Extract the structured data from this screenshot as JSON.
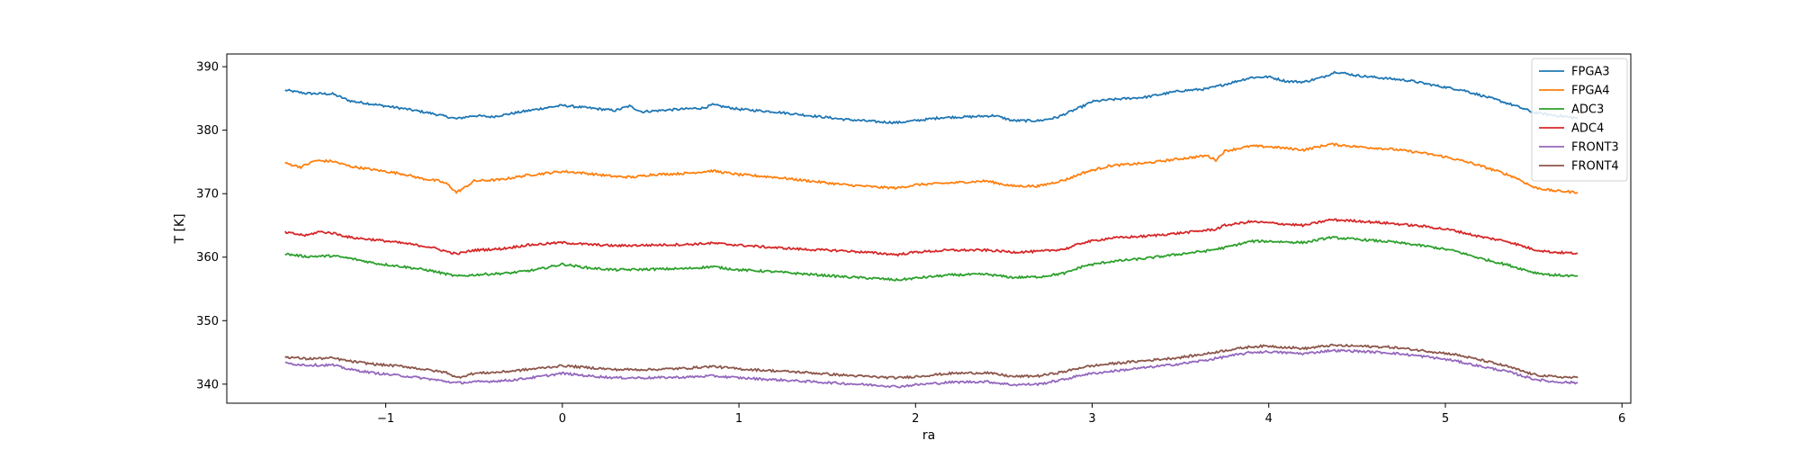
{
  "chart_data": {
    "type": "line",
    "title": "",
    "xlabel": "ra",
    "ylabel": "T [K]",
    "xlim": [
      -1.9,
      6.05
    ],
    "ylim": [
      337,
      392
    ],
    "xticks": [
      -1,
      0,
      1,
      2,
      3,
      4,
      5,
      6
    ],
    "yticks": [
      340,
      350,
      360,
      370,
      380,
      390
    ],
    "grid": false,
    "legend_position": "top-right",
    "series": [
      {
        "name": "FPGA3",
        "color": "#1f77b4",
        "points": [
          [
            -1.57,
            386.3
          ],
          [
            -1.45,
            385.8
          ],
          [
            -1.3,
            385.7
          ],
          [
            -1.2,
            384.6
          ],
          [
            -1.05,
            384.0
          ],
          [
            -0.9,
            383.4
          ],
          [
            -0.75,
            382.7
          ],
          [
            -0.6,
            381.8
          ],
          [
            -0.5,
            382.3
          ],
          [
            -0.4,
            382.1
          ],
          [
            -0.25,
            382.8
          ],
          [
            -0.1,
            383.5
          ],
          [
            0.0,
            383.9
          ],
          [
            0.15,
            383.5
          ],
          [
            0.3,
            383.1
          ],
          [
            0.38,
            383.8
          ],
          [
            0.45,
            382.9
          ],
          [
            0.6,
            383.2
          ],
          [
            0.8,
            383.5
          ],
          [
            0.85,
            384.0
          ],
          [
            1.0,
            383.3
          ],
          [
            1.2,
            382.9
          ],
          [
            1.4,
            382.3
          ],
          [
            1.6,
            381.7
          ],
          [
            1.8,
            381.3
          ],
          [
            1.9,
            381.2
          ],
          [
            2.0,
            381.5
          ],
          [
            2.15,
            382.0
          ],
          [
            2.3,
            382.1
          ],
          [
            2.45,
            382.3
          ],
          [
            2.55,
            381.5
          ],
          [
            2.7,
            381.5
          ],
          [
            2.8,
            382.0
          ],
          [
            2.95,
            383.8
          ],
          [
            3.0,
            384.5
          ],
          [
            3.1,
            384.8
          ],
          [
            3.3,
            385.2
          ],
          [
            3.5,
            386.2
          ],
          [
            3.65,
            386.5
          ],
          [
            3.75,
            387.2
          ],
          [
            3.9,
            388.3
          ],
          [
            4.0,
            388.4
          ],
          [
            4.1,
            387.7
          ],
          [
            4.2,
            387.6
          ],
          [
            4.3,
            388.3
          ],
          [
            4.38,
            389.2
          ],
          [
            4.5,
            388.6
          ],
          [
            4.65,
            388.2
          ],
          [
            4.8,
            387.8
          ],
          [
            4.95,
            387.0
          ],
          [
            5.1,
            386.3
          ],
          [
            5.2,
            385.5
          ],
          [
            5.3,
            384.7
          ],
          [
            5.4,
            383.8
          ],
          [
            5.5,
            382.8
          ],
          [
            5.6,
            382.4
          ],
          [
            5.75,
            381.9
          ]
        ]
      },
      {
        "name": "FPGA4",
        "color": "#ff7f0e",
        "points": [
          [
            -1.57,
            374.8
          ],
          [
            -1.48,
            374.2
          ],
          [
            -1.4,
            375.2
          ],
          [
            -1.3,
            375.1
          ],
          [
            -1.2,
            374.3
          ],
          [
            -1.05,
            373.7
          ],
          [
            -0.9,
            373.1
          ],
          [
            -0.8,
            372.4
          ],
          [
            -0.7,
            372.0
          ],
          [
            -0.65,
            371.5
          ],
          [
            -0.6,
            370.2
          ],
          [
            -0.55,
            371.0
          ],
          [
            -0.5,
            372.0
          ],
          [
            -0.35,
            372.2
          ],
          [
            -0.2,
            372.9
          ],
          [
            0.0,
            373.5
          ],
          [
            0.1,
            373.3
          ],
          [
            0.3,
            372.7
          ],
          [
            0.4,
            372.6
          ],
          [
            0.5,
            373.0
          ],
          [
            0.7,
            373.2
          ],
          [
            0.85,
            373.6
          ],
          [
            1.0,
            373.0
          ],
          [
            1.2,
            372.6
          ],
          [
            1.4,
            372.0
          ],
          [
            1.6,
            371.4
          ],
          [
            1.8,
            371.0
          ],
          [
            1.9,
            370.9
          ],
          [
            2.0,
            371.4
          ],
          [
            2.2,
            371.7
          ],
          [
            2.4,
            372.0
          ],
          [
            2.55,
            371.2
          ],
          [
            2.7,
            371.2
          ],
          [
            2.85,
            372.2
          ],
          [
            2.95,
            373.3
          ],
          [
            3.1,
            374.4
          ],
          [
            3.3,
            374.8
          ],
          [
            3.5,
            375.5
          ],
          [
            3.65,
            376.0
          ],
          [
            3.7,
            375.3
          ],
          [
            3.75,
            376.7
          ],
          [
            3.9,
            377.5
          ],
          [
            4.0,
            377.4
          ],
          [
            4.2,
            376.9
          ],
          [
            4.35,
            377.8
          ],
          [
            4.5,
            377.4
          ],
          [
            4.7,
            377.0
          ],
          [
            4.85,
            376.5
          ],
          [
            5.0,
            375.8
          ],
          [
            5.15,
            374.8
          ],
          [
            5.3,
            373.5
          ],
          [
            5.4,
            372.5
          ],
          [
            5.5,
            371.0
          ],
          [
            5.6,
            370.5
          ],
          [
            5.75,
            370.2
          ]
        ]
      },
      {
        "name": "ADC3",
        "color": "#2ca02c",
        "points": [
          [
            -1.57,
            360.5
          ],
          [
            -1.45,
            360.1
          ],
          [
            -1.3,
            360.2
          ],
          [
            -1.2,
            359.8
          ],
          [
            -1.05,
            359.0
          ],
          [
            -0.9,
            358.5
          ],
          [
            -0.75,
            357.9
          ],
          [
            -0.6,
            357.0
          ],
          [
            -0.45,
            357.3
          ],
          [
            -0.3,
            357.5
          ],
          [
            -0.15,
            358.0
          ],
          [
            0.0,
            358.9
          ],
          [
            0.15,
            358.3
          ],
          [
            0.3,
            358.0
          ],
          [
            0.5,
            358.1
          ],
          [
            0.7,
            358.2
          ],
          [
            0.85,
            358.5
          ],
          [
            1.0,
            358.0
          ],
          [
            1.2,
            357.7
          ],
          [
            1.4,
            357.3
          ],
          [
            1.6,
            356.9
          ],
          [
            1.8,
            356.6
          ],
          [
            1.9,
            356.4
          ],
          [
            2.0,
            356.7
          ],
          [
            2.2,
            357.2
          ],
          [
            2.4,
            357.3
          ],
          [
            2.55,
            356.8
          ],
          [
            2.7,
            356.9
          ],
          [
            2.85,
            357.5
          ],
          [
            2.95,
            358.6
          ],
          [
            3.1,
            359.3
          ],
          [
            3.3,
            359.8
          ],
          [
            3.5,
            360.5
          ],
          [
            3.65,
            361.0
          ],
          [
            3.75,
            361.5
          ],
          [
            3.9,
            362.5
          ],
          [
            4.0,
            362.5
          ],
          [
            4.2,
            362.3
          ],
          [
            4.35,
            363.1
          ],
          [
            4.5,
            362.8
          ],
          [
            4.7,
            362.4
          ],
          [
            4.9,
            361.7
          ],
          [
            5.05,
            361.0
          ],
          [
            5.2,
            359.8
          ],
          [
            5.35,
            358.8
          ],
          [
            5.5,
            357.6
          ],
          [
            5.6,
            357.2
          ],
          [
            5.75,
            357.0
          ]
        ]
      },
      {
        "name": "ADC4",
        "color": "#d62728",
        "points": [
          [
            -1.57,
            363.9
          ],
          [
            -1.45,
            363.4
          ],
          [
            -1.38,
            364.0
          ],
          [
            -1.3,
            363.8
          ],
          [
            -1.2,
            363.1
          ],
          [
            -1.05,
            362.7
          ],
          [
            -0.9,
            362.2
          ],
          [
            -0.75,
            361.6
          ],
          [
            -0.6,
            360.5
          ],
          [
            -0.5,
            361.1
          ],
          [
            -0.35,
            361.3
          ],
          [
            -0.2,
            361.9
          ],
          [
            0.0,
            362.3
          ],
          [
            0.15,
            362.0
          ],
          [
            0.3,
            361.8
          ],
          [
            0.5,
            361.9
          ],
          [
            0.7,
            362.0
          ],
          [
            0.85,
            362.2
          ],
          [
            1.0,
            361.9
          ],
          [
            1.2,
            361.5
          ],
          [
            1.4,
            361.2
          ],
          [
            1.6,
            361.0
          ],
          [
            1.8,
            360.6
          ],
          [
            1.9,
            360.4
          ],
          [
            2.0,
            360.8
          ],
          [
            2.2,
            361.1
          ],
          [
            2.4,
            361.1
          ],
          [
            2.55,
            360.8
          ],
          [
            2.7,
            360.9
          ],
          [
            2.85,
            361.3
          ],
          [
            2.95,
            362.3
          ],
          [
            3.1,
            363.0
          ],
          [
            3.3,
            363.3
          ],
          [
            3.5,
            363.8
          ],
          [
            3.7,
            364.4
          ],
          [
            3.75,
            365.0
          ],
          [
            3.9,
            365.6
          ],
          [
            4.0,
            365.4
          ],
          [
            4.2,
            365.0
          ],
          [
            4.35,
            365.9
          ],
          [
            4.5,
            365.7
          ],
          [
            4.7,
            365.3
          ],
          [
            4.9,
            364.8
          ],
          [
            5.05,
            364.2
          ],
          [
            5.2,
            363.2
          ],
          [
            5.35,
            362.5
          ],
          [
            5.5,
            361.2
          ],
          [
            5.6,
            360.8
          ],
          [
            5.75,
            360.6
          ]
        ]
      },
      {
        "name": "FRONT3",
        "color": "#9467bd",
        "points": [
          [
            -1.57,
            343.3
          ],
          [
            -1.45,
            343.0
          ],
          [
            -1.3,
            343.0
          ],
          [
            -1.2,
            342.3
          ],
          [
            -1.05,
            341.7
          ],
          [
            -0.9,
            341.3
          ],
          [
            -0.75,
            340.8
          ],
          [
            -0.6,
            340.2
          ],
          [
            -0.45,
            340.4
          ],
          [
            -0.3,
            340.6
          ],
          [
            -0.15,
            341.1
          ],
          [
            0.0,
            341.7
          ],
          [
            0.15,
            341.3
          ],
          [
            0.3,
            341.0
          ],
          [
            0.5,
            341.0
          ],
          [
            0.7,
            341.1
          ],
          [
            0.85,
            341.3
          ],
          [
            1.0,
            341.0
          ],
          [
            1.2,
            340.7
          ],
          [
            1.4,
            340.4
          ],
          [
            1.6,
            340.1
          ],
          [
            1.8,
            339.8
          ],
          [
            1.9,
            339.6
          ],
          [
            2.0,
            339.9
          ],
          [
            2.2,
            340.3
          ],
          [
            2.4,
            340.4
          ],
          [
            2.55,
            339.9
          ],
          [
            2.7,
            340.0
          ],
          [
            2.85,
            340.8
          ],
          [
            2.95,
            341.5
          ],
          [
            3.1,
            342.0
          ],
          [
            3.3,
            342.6
          ],
          [
            3.5,
            343.2
          ],
          [
            3.65,
            343.8
          ],
          [
            3.75,
            344.3
          ],
          [
            3.9,
            345.0
          ],
          [
            4.0,
            345.1
          ],
          [
            4.2,
            344.8
          ],
          [
            4.35,
            345.3
          ],
          [
            4.5,
            345.2
          ],
          [
            4.7,
            344.9
          ],
          [
            4.9,
            344.3
          ],
          [
            5.05,
            343.7
          ],
          [
            5.2,
            342.8
          ],
          [
            5.35,
            342.0
          ],
          [
            5.5,
            340.8
          ],
          [
            5.6,
            340.4
          ],
          [
            5.75,
            340.2
          ]
        ]
      },
      {
        "name": "FRONT4",
        "color": "#8c564b",
        "points": [
          [
            -1.57,
            344.3
          ],
          [
            -1.45,
            344.0
          ],
          [
            -1.3,
            344.1
          ],
          [
            -1.2,
            343.6
          ],
          [
            -1.05,
            343.1
          ],
          [
            -0.9,
            342.8
          ],
          [
            -0.75,
            342.2
          ],
          [
            -0.65,
            341.8
          ],
          [
            -0.6,
            341.0
          ],
          [
            -0.5,
            341.7
          ],
          [
            -0.35,
            341.9
          ],
          [
            -0.2,
            342.3
          ],
          [
            0.0,
            342.9
          ],
          [
            0.15,
            342.6
          ],
          [
            0.3,
            342.3
          ],
          [
            0.5,
            342.3
          ],
          [
            0.7,
            342.5
          ],
          [
            0.85,
            342.8
          ],
          [
            1.0,
            342.4
          ],
          [
            1.2,
            342.1
          ],
          [
            1.4,
            341.8
          ],
          [
            1.6,
            341.4
          ],
          [
            1.8,
            341.1
          ],
          [
            1.9,
            341.0
          ],
          [
            2.0,
            341.2
          ],
          [
            2.2,
            341.7
          ],
          [
            2.4,
            341.8
          ],
          [
            2.55,
            341.2
          ],
          [
            2.7,
            341.3
          ],
          [
            2.85,
            342.0
          ],
          [
            2.95,
            342.7
          ],
          [
            3.1,
            343.2
          ],
          [
            3.3,
            343.7
          ],
          [
            3.5,
            344.2
          ],
          [
            3.65,
            344.8
          ],
          [
            3.75,
            345.3
          ],
          [
            3.9,
            345.9
          ],
          [
            4.0,
            346.0
          ],
          [
            4.2,
            345.6
          ],
          [
            4.35,
            346.1
          ],
          [
            4.5,
            346.0
          ],
          [
            4.7,
            345.8
          ],
          [
            4.9,
            345.2
          ],
          [
            5.05,
            344.7
          ],
          [
            5.2,
            343.8
          ],
          [
            5.35,
            342.8
          ],
          [
            5.5,
            341.5
          ],
          [
            5.6,
            341.2
          ],
          [
            5.75,
            341.0
          ]
        ]
      }
    ]
  }
}
